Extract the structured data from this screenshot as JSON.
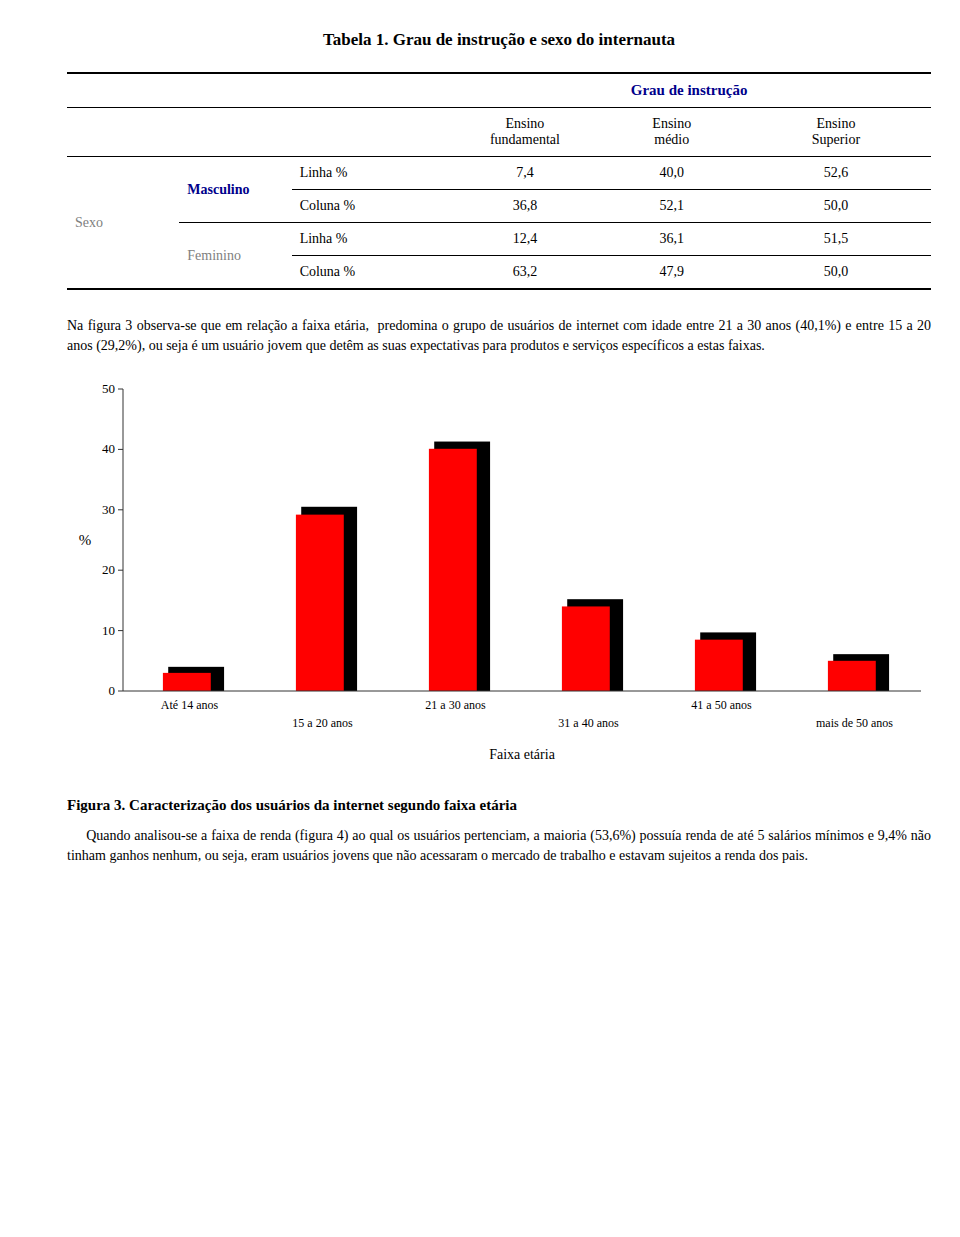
{
  "title": "Tabela 1. Grau de instrução e sexo do internauta",
  "table": {
    "header": "Grau de instrução",
    "header_color": "#00008B",
    "sub_headers": [
      "Ensino\nfundamental",
      "Ensino\nmédio",
      "Ensino\nSuperior"
    ],
    "sexo_label": "Sexo",
    "masc_label": "Masculino",
    "fem_label": "Feminino",
    "linha_label": "Linha %",
    "coluna_label": "Coluna %",
    "masc_linha": [
      "7,4",
      "40,0",
      "52,6"
    ],
    "masc_coluna": [
      "36,8",
      "52,1",
      "50,0"
    ],
    "fem_linha": [
      "12,4",
      "36,1",
      "51,5"
    ],
    "fem_coluna": [
      "63,2",
      "47,9",
      "50,0"
    ]
  },
  "paragraph1": "Na figura 3 observa-se que em relação a faixa etária,  predomina o grupo de usuários de internet com idade entre 21 a 30 anos (40,1%) e entre 15 a 20 anos (29,2%), ou seja é um usuário jovem que detêm as suas expectativas para produtos e serviços específicos a estas faixas.",
  "chart_data": {
    "type": "bar",
    "categories": [
      "Até 14 anos",
      "15 a 20 anos",
      "21 a 30 anos",
      "31 a 40 anos",
      "41 a 50 anos",
      "mais de 50 anos"
    ],
    "series": [
      {
        "color": "#000000",
        "values": [
          4.0,
          30.5,
          41.3,
          15.2,
          9.7,
          6.1
        ]
      },
      {
        "color": "#FF0000",
        "values": [
          3.0,
          29.2,
          40.1,
          14.0,
          8.5,
          5.0
        ]
      }
    ],
    "xlabel": "Faixa etária",
    "ylabel": "%",
    "ylim": [
      0,
      50
    ],
    "yticks": [
      0,
      10,
      20,
      30,
      40,
      50
    ],
    "grid": false
  },
  "figure_caption": "Figura 3. Caracterização dos usuários da internet segundo faixa etária",
  "paragraph2": "     Quando analisou-se a faixa de renda (figura 4) ao qual os usuários pertenciam, a maioria (53,6%) possuía renda de até 5 salários mínimos e 9,4% não tinham ganhos nenhum, ou seja, eram usuários jovens que não acessaram o mercado de trabalho e estavam sujeitos a renda dos pais."
}
